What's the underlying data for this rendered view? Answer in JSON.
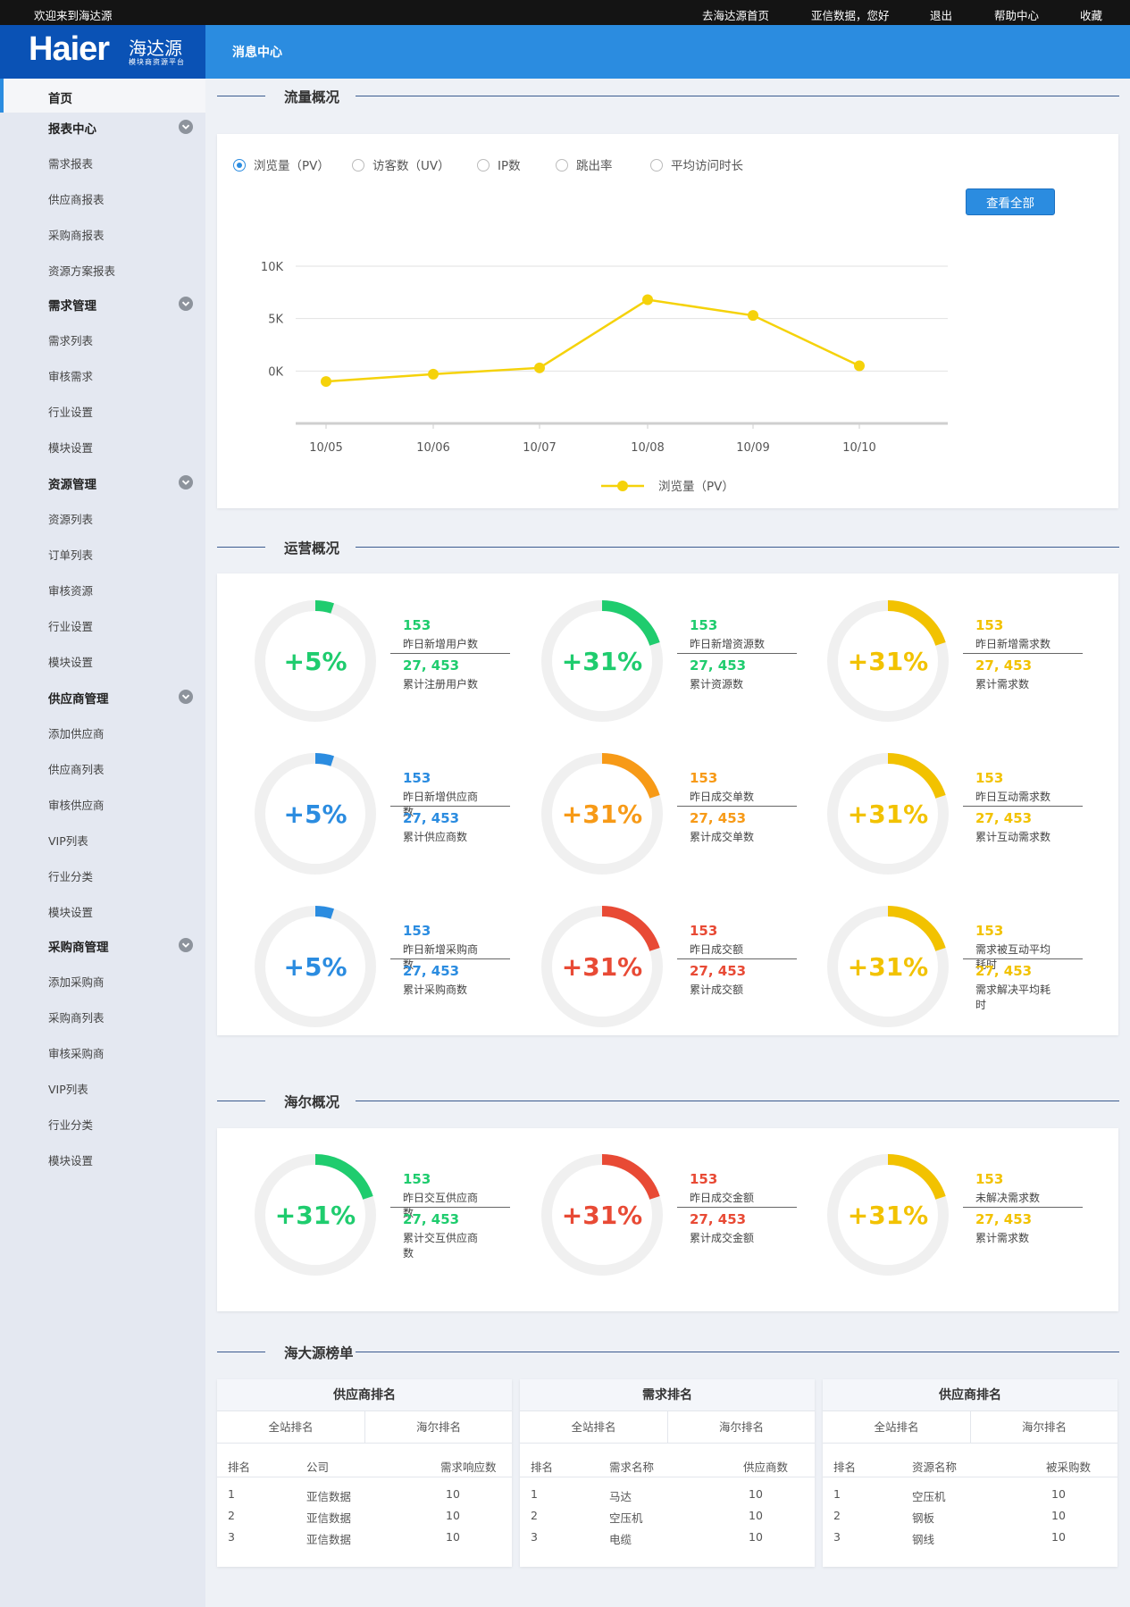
{
  "topbar": {
    "welcome": "欢迎来到海达源",
    "links": [
      "去海达源首页",
      "亚信数据，您好",
      "退出",
      "帮助中心",
      "收藏"
    ]
  },
  "header": {
    "brand": "Haier",
    "brand_cn": "海达源",
    "brand_sub": "模块商资源平台",
    "title": "消息中心"
  },
  "sidebar": {
    "items": [
      {
        "label": "首页",
        "type": "home"
      },
      {
        "label": "报表中心",
        "type": "group"
      },
      {
        "label": "需求报表",
        "type": "item"
      },
      {
        "label": "供应商报表",
        "type": "item"
      },
      {
        "label": "采购商报表",
        "type": "item"
      },
      {
        "label": "资源方案报表",
        "type": "item"
      },
      {
        "label": "需求管理",
        "type": "group"
      },
      {
        "label": "需求列表",
        "type": "item"
      },
      {
        "label": "审核需求",
        "type": "item"
      },
      {
        "label": "行业设置",
        "type": "item"
      },
      {
        "label": "模块设置",
        "type": "item"
      },
      {
        "label": "资源管理",
        "type": "group"
      },
      {
        "label": "资源列表",
        "type": "item"
      },
      {
        "label": "订单列表",
        "type": "item"
      },
      {
        "label": "审核资源",
        "type": "item"
      },
      {
        "label": "行业设置",
        "type": "item"
      },
      {
        "label": "模块设置",
        "type": "item"
      },
      {
        "label": "供应商管理",
        "type": "group"
      },
      {
        "label": "添加供应商",
        "type": "item"
      },
      {
        "label": "供应商列表",
        "type": "item"
      },
      {
        "label": "审核供应商",
        "type": "item"
      },
      {
        "label": "VIP列表",
        "type": "item"
      },
      {
        "label": "行业分类",
        "type": "item"
      },
      {
        "label": "模块设置",
        "type": "item"
      },
      {
        "label": "采购商管理",
        "type": "group"
      },
      {
        "label": "添加采购商",
        "type": "item"
      },
      {
        "label": "采购商列表",
        "type": "item"
      },
      {
        "label": "审核采购商",
        "type": "item"
      },
      {
        "label": "VIP列表",
        "type": "item"
      },
      {
        "label": "行业分类",
        "type": "item"
      },
      {
        "label": "模块设置",
        "type": "item"
      }
    ]
  },
  "sections": {
    "traffic": "流量概况",
    "operation": "运营概况",
    "haier": "海尔概况",
    "ranking": "海大源榜单"
  },
  "traffic": {
    "radios": [
      "浏览量（PV）",
      "访客数（UV）",
      "IP数",
      "跳出率",
      "平均访问时长"
    ],
    "selected": 0,
    "view_all": "查看全部"
  },
  "chart_data": {
    "type": "line",
    "title": "",
    "x": [
      "10/05",
      "10/06",
      "10/07",
      "10/08",
      "10/09",
      "10/10"
    ],
    "yticks": [
      "10K",
      "5K",
      "0K"
    ],
    "ylim": [
      -5000,
      10000
    ],
    "series": [
      {
        "name": "浏览量（PV）",
        "color": "#f5d20a",
        "values": [
          -1000,
          -300,
          300,
          6800,
          5300,
          500
        ]
      }
    ],
    "legend": "bottom-center",
    "grid": true
  },
  "colors": {
    "green": "#1fcc6e",
    "yellow": "#f2c200",
    "blue": "#2b8ce0",
    "orange": "#f79a17",
    "red": "#e84a35",
    "track": "#f0f0f0",
    "accent": "#2b8ce0"
  },
  "operation": [
    {
      "pct": "+5%",
      "frac": 0.05,
      "color": "green",
      "v1": "153",
      "l1": "昨日新增用户数",
      "v2": "27, 453",
      "l2": "累计注册用户数"
    },
    {
      "pct": "+31%",
      "frac": 0.2,
      "color": "green",
      "v1": "153",
      "l1": "昨日新增资源数",
      "v2": "27, 453",
      "l2": "累计资源数"
    },
    {
      "pct": "+31%",
      "frac": 0.2,
      "color": "yellow",
      "v1": "153",
      "l1": "昨日新增需求数",
      "v2": "27, 453",
      "l2": "累计需求数"
    },
    {
      "pct": "+5%",
      "frac": 0.05,
      "color": "blue",
      "v1": "153",
      "l1": "昨日新增供应商数",
      "v2": "27, 453",
      "l2": "累计供应商数"
    },
    {
      "pct": "+31%",
      "frac": 0.2,
      "color": "orange",
      "v1": "153",
      "l1": "昨日成交单数",
      "v2": "27, 453",
      "l2": "累计成交单数"
    },
    {
      "pct": "+31%",
      "frac": 0.2,
      "color": "yellow",
      "v1": "153",
      "l1": "昨日互动需求数",
      "v2": "27, 453",
      "l2": "累计互动需求数"
    },
    {
      "pct": "+5%",
      "frac": 0.05,
      "color": "blue",
      "v1": "153",
      "l1": "昨日新增采购商数",
      "v2": "27, 453",
      "l2": "累计采购商数"
    },
    {
      "pct": "+31%",
      "frac": 0.2,
      "color": "red",
      "v1": "153",
      "l1": "昨日成交额",
      "v2": "27, 453",
      "l2": "累计成交额"
    },
    {
      "pct": "+31%",
      "frac": 0.2,
      "color": "yellow",
      "v1": "153",
      "l1": "需求被互动平均耗时",
      "v2": "27, 453",
      "l2": "需求解决平均耗时"
    }
  ],
  "haier": [
    {
      "pct": "+31%",
      "frac": 0.2,
      "color": "green",
      "v1": "153",
      "l1": "昨日交互供应商数",
      "v2": "27, 453",
      "l2": "累计交互供应商数"
    },
    {
      "pct": "+31%",
      "frac": 0.2,
      "color": "red",
      "v1": "153",
      "l1": "昨日成交金额",
      "v2": "27, 453",
      "l2": "累计成交金额"
    },
    {
      "pct": "+31%",
      "frac": 0.2,
      "color": "yellow",
      "v1": "153",
      "l1": "未解决需求数",
      "v2": "27, 453",
      "l2": "累计需求数"
    }
  ],
  "rankings": [
    {
      "title": "供应商排名",
      "tabs": [
        "全站排名",
        "海尔排名"
      ],
      "cols": [
        "排名",
        "公司",
        "需求响应数"
      ],
      "rows": [
        [
          "1",
          "亚信数据",
          "10"
        ],
        [
          "2",
          "亚信数据",
          "10"
        ],
        [
          "3",
          "亚信数据",
          "10"
        ]
      ]
    },
    {
      "title": "需求排名",
      "tabs": [
        "全站排名",
        "海尔排名"
      ],
      "cols": [
        "排名",
        "需求名称",
        "供应商数"
      ],
      "rows": [
        [
          "1",
          "马达",
          "10"
        ],
        [
          "2",
          "空压机",
          "10"
        ],
        [
          "3",
          "电缆",
          "10"
        ]
      ]
    },
    {
      "title": "供应商排名",
      "tabs": [
        "全站排名",
        "海尔排名"
      ],
      "cols": [
        "排名",
        "资源名称",
        "被采购数"
      ],
      "rows": [
        [
          "1",
          "空压机",
          "10"
        ],
        [
          "2",
          "钢板",
          "10"
        ],
        [
          "3",
          "钢线",
          "10"
        ]
      ]
    }
  ]
}
